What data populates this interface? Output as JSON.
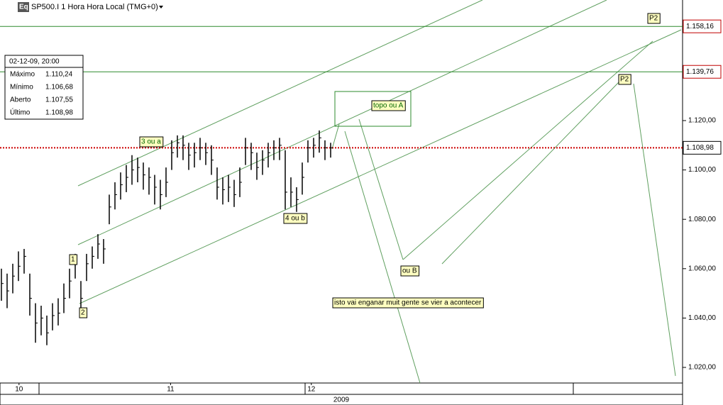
{
  "chart_data": {
    "type": "ohlc",
    "icon": "Eq",
    "title": "SP500.I 1 Hora Hora Local (TMG+0)",
    "color": "#000000",
    "x": [
      0,
      1,
      2,
      3,
      4,
      5,
      6,
      7,
      8,
      9,
      10,
      11,
      12,
      13,
      14,
      15,
      16,
      17,
      18,
      19,
      20,
      21,
      22,
      23,
      24,
      25,
      26,
      27,
      28,
      29,
      30,
      31,
      32,
      33,
      34,
      35,
      36,
      37,
      38,
      39,
      40,
      41,
      42,
      43,
      44,
      45,
      46,
      47,
      48,
      49,
      50,
      51,
      52,
      53,
      54,
      55,
      56,
      57,
      58
    ],
    "high": [
      1060,
      1058,
      1062,
      1067,
      1068,
      1058,
      1046,
      1045,
      1041,
      1046,
      1048,
      1054,
      1060,
      1066,
      1055,
      1066,
      1069,
      1074,
      1072,
      1090,
      1095,
      1099,
      1102,
      1106,
      1105,
      1103,
      1101,
      1098,
      1096,
      1101,
      1112,
      1114,
      1114,
      1111,
      1111,
      1113,
      1111,
      1110,
      1101,
      1097,
      1098,
      1096,
      1101,
      1113,
      1111,
      1107,
      1108,
      1111,
      1112,
      1113,
      1108,
      1097,
      1093,
      1103,
      1112,
      1113,
      1116,
      1112,
      1111
    ],
    "low": [
      1047,
      1044,
      1050,
      1055,
      1058,
      1041,
      1030,
      1033,
      1029,
      1035,
      1037,
      1042,
      1048,
      1056,
      1042,
      1055,
      1060,
      1064,
      1062,
      1078,
      1084,
      1088,
      1091,
      1094,
      1095,
      1092,
      1090,
      1086,
      1084,
      1089,
      1100,
      1105,
      1104,
      1100,
      1101,
      1104,
      1102,
      1098,
      1088,
      1086,
      1087,
      1085,
      1089,
      1102,
      1100,
      1096,
      1098,
      1101,
      1104,
      1104,
      1084,
      1085,
      1083,
      1090,
      1103,
      1105,
      1107,
      1104,
      1105
    ],
    "close": [
      1054,
      1051,
      1057,
      1061,
      1065,
      1048,
      1038,
      1040,
      1034,
      1041,
      1042,
      1048,
      1055,
      1062,
      1048,
      1062,
      1065,
      1070,
      1068,
      1085,
      1090,
      1094,
      1097,
      1100,
      1101,
      1098,
      1097,
      1093,
      1090,
      1095,
      1107,
      1111,
      1110,
      1106,
      1107,
      1109,
      1107,
      1104,
      1093,
      1092,
      1093,
      1090,
      1095,
      1109,
      1107,
      1101,
      1104,
      1107,
      1109,
      1110,
      1091,
      1091,
      1088,
      1097,
      1109,
      1110,
      1113,
      1109,
      1109
    ],
    "xlim": [
      -0.25,
      120
    ],
    "xticks": [
      {
        "value": 3.1,
        "label": "10"
      },
      {
        "value": 29.8,
        "label": "11"
      },
      {
        "value": 54.6,
        "label": "12"
      }
    ],
    "xlabel": "2009",
    "ylim": [
      1013.68,
      1168.85
    ],
    "yticks": [
      {
        "value": 1020,
        "label": "1.020,00"
      },
      {
        "value": 1040,
        "label": "1.040,00"
      },
      {
        "value": 1060,
        "label": "1.060,00"
      },
      {
        "value": 1080,
        "label": "1.080,00"
      },
      {
        "value": 1100,
        "label": "1.100,00"
      },
      {
        "value": 1120,
        "label": "1.120,00"
      }
    ],
    "levels": [
      {
        "value": 1158.16,
        "label": "1.158,16",
        "color": "#2e8b2e",
        "border": "#c00000",
        "dash": false
      },
      {
        "value": 1139.76,
        "label": "1.139,76",
        "color": "#2e8b2e",
        "border": "#c00000",
        "dash": false
      },
      {
        "value": 1108.98,
        "label": "1.108,98",
        "color": "#cc0000",
        "border": "#000000",
        "dash": true
      }
    ],
    "info": {
      "date": "02-12-09, 20:00",
      "rows": [
        [
          "Máximo",
          "1.110,24"
        ],
        [
          "Mínimo",
          "1.106,68"
        ],
        [
          "Aberto",
          "1.107,55"
        ],
        [
          "Último",
          "1.108,98"
        ]
      ]
    },
    "annotations": [
      "3 ou a",
      "topo ou A",
      "4 ou b",
      "1",
      "2",
      "ou B",
      "P2",
      "P2",
      "isto vai enganar muit gente se vier a acontecer"
    ]
  }
}
